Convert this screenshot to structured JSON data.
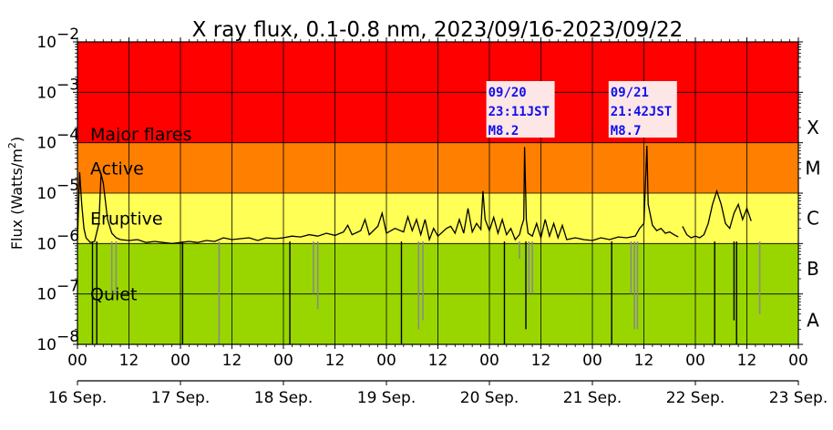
{
  "chart_data": {
    "type": "line",
    "title": "X ray flux, 0.1-0.8 nm, 2023/09/16-2023/09/22",
    "ylabel": "Flux (Watts/m²)",
    "ylabel_main": "Flux (Watts/m",
    "ylabel_sup": "2",
    "ylabel_close": ")",
    "yscale": "log",
    "ylim": [
      1e-08,
      0.01
    ],
    "y_ticks": [
      {
        "exp": -8,
        "base": "10",
        "sup": "−8"
      },
      {
        "exp": -7,
        "base": "10",
        "sup": "−7"
      },
      {
        "exp": -6,
        "base": "10",
        "sup": "−6"
      },
      {
        "exp": -5,
        "base": "10",
        "sup": "−5"
      },
      {
        "exp": -4,
        "base": "10",
        "sup": "−4"
      },
      {
        "exp": -3,
        "base": "10",
        "sup": "−3"
      },
      {
        "exp": -2,
        "base": "10",
        "sup": "−2"
      }
    ],
    "xlim_hours": [
      0,
      168
    ],
    "x_hour_ticks": [
      "00",
      "12",
      "00",
      "12",
      "00",
      "12",
      "00",
      "12",
      "00",
      "12",
      "00",
      "12",
      "00",
      "12",
      "00"
    ],
    "x_day_ticks": [
      "16 Sep.",
      "17 Sep.",
      "18 Sep.",
      "19 Sep.",
      "20 Sep.",
      "21 Sep.",
      "22 Sep.",
      "23 Sep."
    ],
    "grid": true,
    "bands": [
      {
        "label": "Major flares",
        "from": 0.0001,
        "to": 0.01,
        "color": "#ff0000"
      },
      {
        "label": "Active",
        "from": 1e-05,
        "to": 0.0001,
        "color": "#ff7f00"
      },
      {
        "label": "Eruptive",
        "from": 1e-06,
        "to": 1e-05,
        "color": "#ffff55"
      },
      {
        "label": "Quiet",
        "from": 1e-08,
        "to": 1e-06,
        "color": "#99d600"
      }
    ],
    "flare_classes": [
      "X",
      "M",
      "C",
      "B",
      "A"
    ],
    "annotations": [
      {
        "lines": [
          "09/20",
          "23:11JST",
          "M8.2"
        ],
        "hour": 104.2,
        "flux": 8.2e-05
      },
      {
        "lines": [
          "09/21",
          "21:42JST",
          "M8.7"
        ],
        "hour": 132.7,
        "flux": 8.7e-05
      }
    ],
    "series": [
      {
        "color": "#000000",
        "points": [
          [
            0,
            1.2e-06
          ],
          [
            0.5,
            2.6e-05
          ],
          [
            1,
            6e-06
          ],
          [
            1.5,
            2e-06
          ],
          [
            2,
            1.3e-06
          ],
          [
            3,
            1.05e-06
          ],
          [
            4,
            1.1e-06
          ],
          [
            5,
            2.5e-06
          ],
          [
            5.5,
            2.4e-05
          ],
          [
            6,
            1.6e-05
          ],
          [
            7,
            3e-06
          ],
          [
            8,
            1.6e-06
          ],
          [
            9,
            1.3e-06
          ],
          [
            10,
            1.2e-06
          ],
          [
            12,
            1.15e-06
          ],
          [
            14,
            1.2e-06
          ],
          [
            16,
            1.05e-06
          ],
          [
            18,
            1.1e-06
          ],
          [
            20,
            1.05e-06
          ],
          [
            22,
            1e-06
          ],
          [
            24,
            1.05e-06
          ],
          [
            26,
            1.1e-06
          ],
          [
            28,
            1.05e-06
          ],
          [
            30,
            1.15e-06
          ],
          [
            32,
            1.1e-06
          ],
          [
            34,
            1.3e-06
          ],
          [
            36,
            1.2e-06
          ],
          [
            38,
            1.25e-06
          ],
          [
            40,
            1.3e-06
          ],
          [
            42,
            1.15e-06
          ],
          [
            44,
            1.3e-06
          ],
          [
            46,
            1.25e-06
          ],
          [
            48,
            1.3e-06
          ],
          [
            50,
            1.4e-06
          ],
          [
            52,
            1.35e-06
          ],
          [
            54,
            1.5e-06
          ],
          [
            56,
            1.4e-06
          ],
          [
            58,
            1.6e-06
          ],
          [
            60,
            1.45e-06
          ],
          [
            62,
            1.7e-06
          ],
          [
            63,
            2.3e-06
          ],
          [
            64,
            1.5e-06
          ],
          [
            66,
            1.8e-06
          ],
          [
            67,
            3e-06
          ],
          [
            68,
            1.5e-06
          ],
          [
            70,
            2.2e-06
          ],
          [
            71,
            4e-06
          ],
          [
            72,
            1.6e-06
          ],
          [
            74,
            2e-06
          ],
          [
            76,
            1.7e-06
          ],
          [
            77,
            3.4e-06
          ],
          [
            78,
            1.8e-06
          ],
          [
            79,
            3e-06
          ],
          [
            80,
            1.5e-06
          ],
          [
            81,
            3e-06
          ],
          [
            82,
            1.2e-06
          ],
          [
            83,
            2e-06
          ],
          [
            84,
            1.4e-06
          ],
          [
            86,
            2e-06
          ],
          [
            87,
            2.2e-06
          ],
          [
            88,
            1.6e-06
          ],
          [
            89,
            3e-06
          ],
          [
            90,
            1.6e-06
          ],
          [
            91,
            5e-06
          ],
          [
            92,
            1.7e-06
          ],
          [
            93,
            2.5e-06
          ],
          [
            94,
            1.9e-06
          ],
          [
            94.5,
            1.1e-05
          ],
          [
            95,
            3e-06
          ],
          [
            96,
            1.8e-06
          ],
          [
            97,
            3.3e-06
          ],
          [
            98,
            1.6e-06
          ],
          [
            99,
            3e-06
          ],
          [
            100,
            1.5e-06
          ],
          [
            101,
            2e-06
          ],
          [
            102,
            1.2e-06
          ],
          [
            103,
            1.5e-06
          ],
          [
            103.5,
            2.2e-06
          ],
          [
            104,
            3e-06
          ],
          [
            104.2,
            8.2e-05
          ],
          [
            104.6,
            3e-06
          ],
          [
            105,
            1.6e-06
          ],
          [
            106,
            1.4e-06
          ],
          [
            107,
            2.5e-06
          ],
          [
            108,
            1.3e-06
          ],
          [
            109,
            3e-06
          ],
          [
            110,
            1.4e-06
          ],
          [
            111,
            2.5e-06
          ],
          [
            112,
            1.3e-06
          ],
          [
            113,
            2.3e-06
          ],
          [
            114,
            1.2e-06
          ],
          [
            116,
            1.3e-06
          ],
          [
            118,
            1.2e-06
          ],
          [
            120,
            1.15e-06
          ],
          [
            122,
            1.3e-06
          ],
          [
            124,
            1.2e-06
          ],
          [
            126,
            1.35e-06
          ],
          [
            128,
            1.3e-06
          ],
          [
            130,
            1.4e-06
          ],
          [
            131,
            2e-06
          ],
          [
            132,
            2.5e-06
          ],
          [
            132.7,
            8.7e-05
          ],
          [
            133,
            6e-06
          ],
          [
            134,
            2.3e-06
          ],
          [
            135,
            1.8e-06
          ],
          [
            136,
            2e-06
          ],
          [
            137,
            1.6e-06
          ],
          [
            138,
            1.7e-06
          ],
          [
            139,
            1.5e-06
          ],
          [
            140,
            1.35e-06
          ]
        ]
      },
      {
        "color": "#000000",
        "points": [
          [
            141,
            2.2e-06
          ],
          [
            142,
            1.5e-06
          ],
          [
            143,
            1.3e-06
          ],
          [
            144,
            1.4e-06
          ],
          [
            145,
            1.3e-06
          ],
          [
            146,
            1.5e-06
          ],
          [
            147,
            2.5e-06
          ],
          [
            148,
            6e-06
          ],
          [
            149,
            1.1e-05
          ],
          [
            150,
            6e-06
          ],
          [
            151,
            2.5e-06
          ],
          [
            152,
            2e-06
          ],
          [
            153,
            4e-06
          ],
          [
            154,
            6e-06
          ],
          [
            155,
            3e-06
          ],
          [
            156,
            5e-06
          ],
          [
            157,
            2.8e-06
          ]
        ]
      }
    ],
    "dropouts_black": [
      [
        3.5,
        1e-08
      ],
      [
        4.5,
        1e-08
      ],
      [
        24.5,
        1e-08
      ],
      [
        49.5,
        1e-08
      ],
      [
        75.5,
        1e-08
      ],
      [
        99.5,
        1e-08
      ],
      [
        104.5,
        2e-08
      ],
      [
        124.5,
        1e-08
      ],
      [
        148.5,
        1e-08
      ],
      [
        153,
        3e-08
      ],
      [
        153.6,
        1e-08
      ]
    ],
    "dropouts_grey": [
      [
        8,
        1e-07
      ],
      [
        9,
        1e-07
      ],
      [
        33,
        1e-08
      ],
      [
        55,
        1e-07
      ],
      [
        56,
        5e-08
      ],
      [
        79.5,
        2e-08
      ],
      [
        80.5,
        3e-08
      ],
      [
        103,
        5e-07
      ],
      [
        105.2,
        1e-07
      ],
      [
        106,
        1e-07
      ],
      [
        129,
        1e-07
      ],
      [
        129.8,
        2e-08
      ],
      [
        130.5,
        2e-08
      ],
      [
        159,
        4e-08
      ]
    ]
  }
}
